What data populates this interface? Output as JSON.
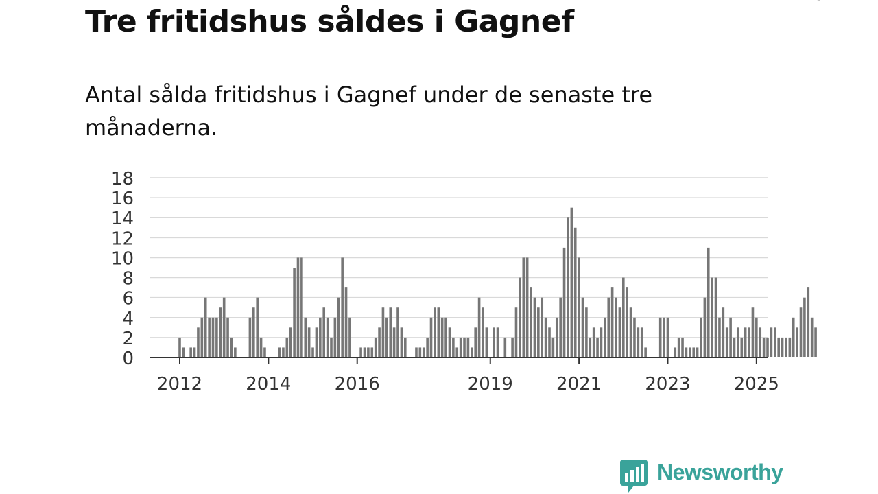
{
  "header": {
    "title": "Tre fritidshus såldes i Gagnef",
    "subtitle": "Antal sålda fritidshus i Gagnef under de senaste tre månaderna."
  },
  "brand": {
    "name": "Newsworthy",
    "color": "#3aa39a"
  },
  "colors": {
    "bar": "#767676",
    "highlight": "#1a9a96",
    "grid": "#d9d9d9",
    "axis": "#333333"
  },
  "chart_data": {
    "type": "bar",
    "x_start": "2012-01",
    "x_labels": [
      "2012",
      "2014",
      "2016",
      "2019",
      "2021",
      "2023",
      "2025"
    ],
    "y_ticks": [
      0,
      2,
      4,
      6,
      8,
      10,
      12,
      14,
      16,
      18
    ],
    "ylim": [
      0,
      18
    ],
    "grid": true,
    "values": [
      2,
      1,
      0,
      1,
      1,
      3,
      4,
      6,
      4,
      4,
      4,
      5,
      6,
      4,
      2,
      1,
      0,
      0,
      0,
      4,
      5,
      6,
      2,
      1,
      0,
      0,
      0,
      1,
      1,
      2,
      3,
      9,
      10,
      10,
      4,
      3,
      1,
      3,
      4,
      5,
      4,
      2,
      4,
      6,
      10,
      7,
      4,
      0,
      0,
      1,
      1,
      1,
      1,
      2,
      3,
      5,
      4,
      5,
      3,
      5,
      3,
      2,
      0,
      0,
      1,
      1,
      1,
      2,
      4,
      5,
      5,
      4,
      4,
      3,
      2,
      1,
      2,
      2,
      2,
      1,
      3,
      6,
      5,
      3,
      0,
      3,
      3,
      0,
      2,
      0,
      2,
      5,
      8,
      10,
      10,
      7,
      6,
      5,
      6,
      4,
      3,
      2,
      4,
      6,
      11,
      14,
      15,
      13,
      10,
      6,
      5,
      2,
      3,
      2,
      3,
      4,
      6,
      7,
      6,
      5,
      8,
      7,
      5,
      4,
      3,
      3,
      1,
      0,
      0,
      0,
      4,
      4,
      4,
      0,
      1,
      2,
      2,
      1,
      1,
      1,
      1,
      4,
      6,
      11,
      8,
      8,
      4,
      5,
      3,
      4,
      2,
      3,
      2,
      3,
      3,
      5,
      4,
      3,
      2,
      2,
      3,
      3,
      2,
      2,
      2,
      2,
      4,
      3,
      5,
      6,
      7,
      4,
      3
    ],
    "highlight_index": 173,
    "highlight_label": "3"
  }
}
